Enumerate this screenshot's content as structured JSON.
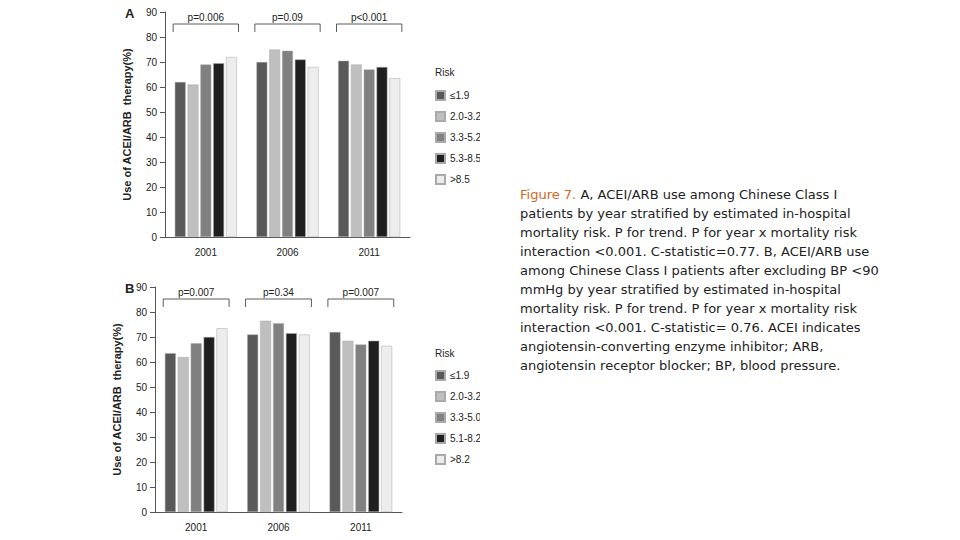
{
  "caption_label": "Figure 7.",
  "caption": "A, ACEI/ARB use among Chinese Class I patients by year stratified by estimated in-hospital mortality risk. P for trend. P for year x mortality risk interaction <0.001. C-statistic=0.77. B, ACEI/ARB use among Chinese Class I patients after excluding BP <90 mmHg by year stratified by estimated in-hospital mortality risk. P for trend. P for year x mortality risk interaction <0.001. C-statistic= 0.76. ACEI indicates angiotensin-converting enzyme inhibitor; ARB, angiotensin receptor blocker; BP, blood pressure.",
  "chart_data": [
    {
      "type": "bar",
      "title": "A",
      "y_label": "Use of ACEI/ARB  therapy(%)",
      "categories": [
        "2001",
        "2006",
        "2011"
      ],
      "series": [
        {
          "name": "≤1.9",
          "color": "#595959",
          "values": [
            62,
            70,
            70.5
          ]
        },
        {
          "name": "2.0-3.2",
          "color": "#bfbfbf",
          "values": [
            61,
            75,
            69
          ]
        },
        {
          "name": "3.3-5.2",
          "color": "#808080",
          "values": [
            69,
            74.5,
            67
          ]
        },
        {
          "name": "5.3-8.5",
          "color": "#1f1f1f",
          "values": [
            69.5,
            71,
            68
          ]
        },
        {
          "name": ">8.5",
          "color": "#ededed",
          "values": [
            72,
            68,
            63.5
          ]
        }
      ],
      "ylim": [
        0,
        90
      ],
      "yticks": [
        0,
        10,
        20,
        30,
        40,
        50,
        60,
        70,
        80,
        90
      ],
      "legend": "right",
      "legend_title": "Risk",
      "annotations": [
        "p=0.006",
        "p=0.09",
        "p<0.001"
      ]
    },
    {
      "type": "bar",
      "title": "B",
      "y_label": "Use of ACEI/ARB  therapy(%)",
      "categories": [
        "2001",
        "2006",
        "2011"
      ],
      "series": [
        {
          "name": "≤1.9",
          "color": "#595959",
          "values": [
            63.5,
            71,
            72
          ]
        },
        {
          "name": "2.0-3.2",
          "color": "#bfbfbf",
          "values": [
            62,
            76.5,
            68.5
          ]
        },
        {
          "name": "3.3-5.0",
          "color": "#808080",
          "values": [
            67.5,
            75.5,
            67
          ]
        },
        {
          "name": "5.1-8.2",
          "color": "#1f1f1f",
          "values": [
            70,
            71.5,
            68.5
          ]
        },
        {
          "name": ">8.2",
          "color": "#ededed",
          "values": [
            73.5,
            71,
            66.5
          ]
        }
      ],
      "ylim": [
        0,
        90
      ],
      "yticks": [
        0,
        10,
        20,
        30,
        40,
        50,
        60,
        70,
        80,
        90
      ],
      "legend": "right",
      "legend_title": "Risk",
      "annotations": [
        "p=0.007",
        "p=0.34",
        "p=0.007"
      ]
    }
  ]
}
